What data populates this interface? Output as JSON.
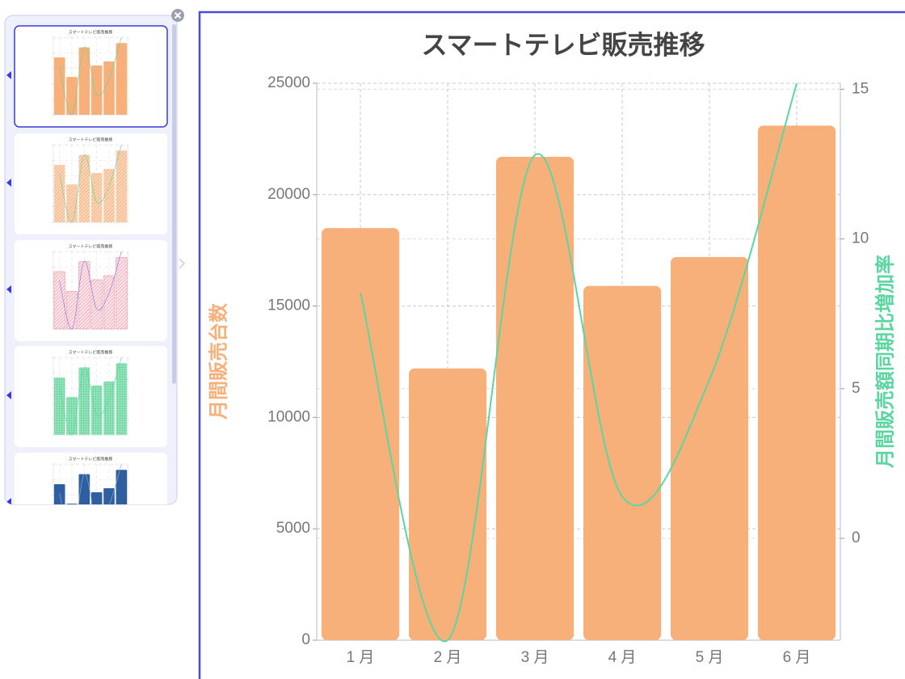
{
  "chart_data": {
    "type": "bar",
    "title": "スマートテレビ販売推移",
    "y_label": "月間販売台数",
    "y2_label": "月間販売額同期比増加率",
    "categories": [
      "1 月",
      "2 月",
      "3 月",
      "4 月",
      "5 月",
      "6 月"
    ],
    "series": [
      {
        "type": "bar",
        "color": "#f7b07a",
        "values": [
          18500,
          12200,
          21700,
          15900,
          17200,
          23100
        ]
      },
      {
        "type": "line",
        "axis": "y2",
        "color": "#5cd6a0",
        "values": [
          8.2,
          -3.4,
          12.8,
          1.4,
          5.3,
          15.2
        ]
      }
    ],
    "ylim": [
      0,
      25000
    ],
    "yticks": [
      0,
      5000,
      10000,
      15000,
      20000,
      25000
    ],
    "y2lim": [
      -3.4,
      15.2
    ],
    "y2ticks": [
      0,
      5,
      10,
      15
    ],
    "grid": true
  }
}
